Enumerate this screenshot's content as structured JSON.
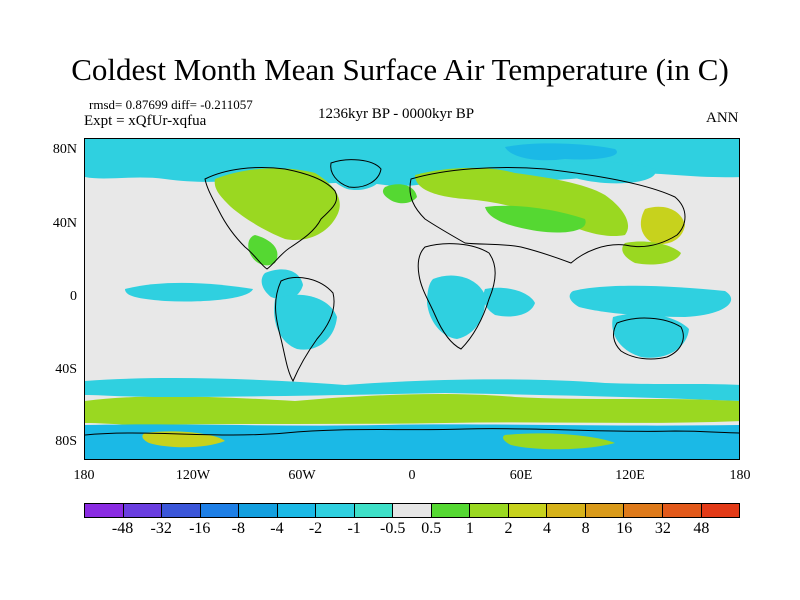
{
  "title": "Coldest Month Mean Surface Air Temperature (in C)",
  "rmsd_text": "rmsd= 0.87699 diff= -0.211057",
  "expt_text": "Expt = xQfUr-xqfua",
  "period_text": "1236kyr BP - 0000kyr BP",
  "season_text": "ANN",
  "map": {
    "lat_labels": [
      "80N",
      "40N",
      "0",
      "40S",
      "80S"
    ],
    "lon_labels": [
      "180",
      "120W",
      "60W",
      "0",
      "60E",
      "120E",
      "180"
    ],
    "background_color": "#e8e8e8",
    "fields": [
      {
        "name": "arctic-ocean-band",
        "color_level": "-1"
      },
      {
        "name": "north-america-warm",
        "color_level": "1"
      },
      {
        "name": "eurasia-warm",
        "color_level": "1"
      },
      {
        "name": "east-asia-warm",
        "color_level": "2"
      },
      {
        "name": "tropical-cool",
        "color_level": "-1"
      },
      {
        "name": "southern-ocean-warm",
        "color_level": "1"
      },
      {
        "name": "antarctic-cool",
        "color_level": "-2"
      }
    ]
  },
  "colorbar": {
    "colors": [
      "#8a2be2",
      "#6a3ee0",
      "#3b56d9",
      "#1e7fe6",
      "#139fdf",
      "#1bb9e6",
      "#2fd0e0",
      "#3ee0c8",
      "#e6e6e6",
      "#55d832",
      "#9ad821",
      "#c7d21d",
      "#d6b21a",
      "#d99a1a",
      "#de7a1a",
      "#e2591a",
      "#e23a17"
    ],
    "labels": [
      "-48",
      "-32",
      "-16",
      "-8",
      "-4",
      "-2",
      "-1",
      "-0.5",
      "0.5",
      "1",
      "2",
      "4",
      "8",
      "16",
      "32",
      "48"
    ]
  }
}
